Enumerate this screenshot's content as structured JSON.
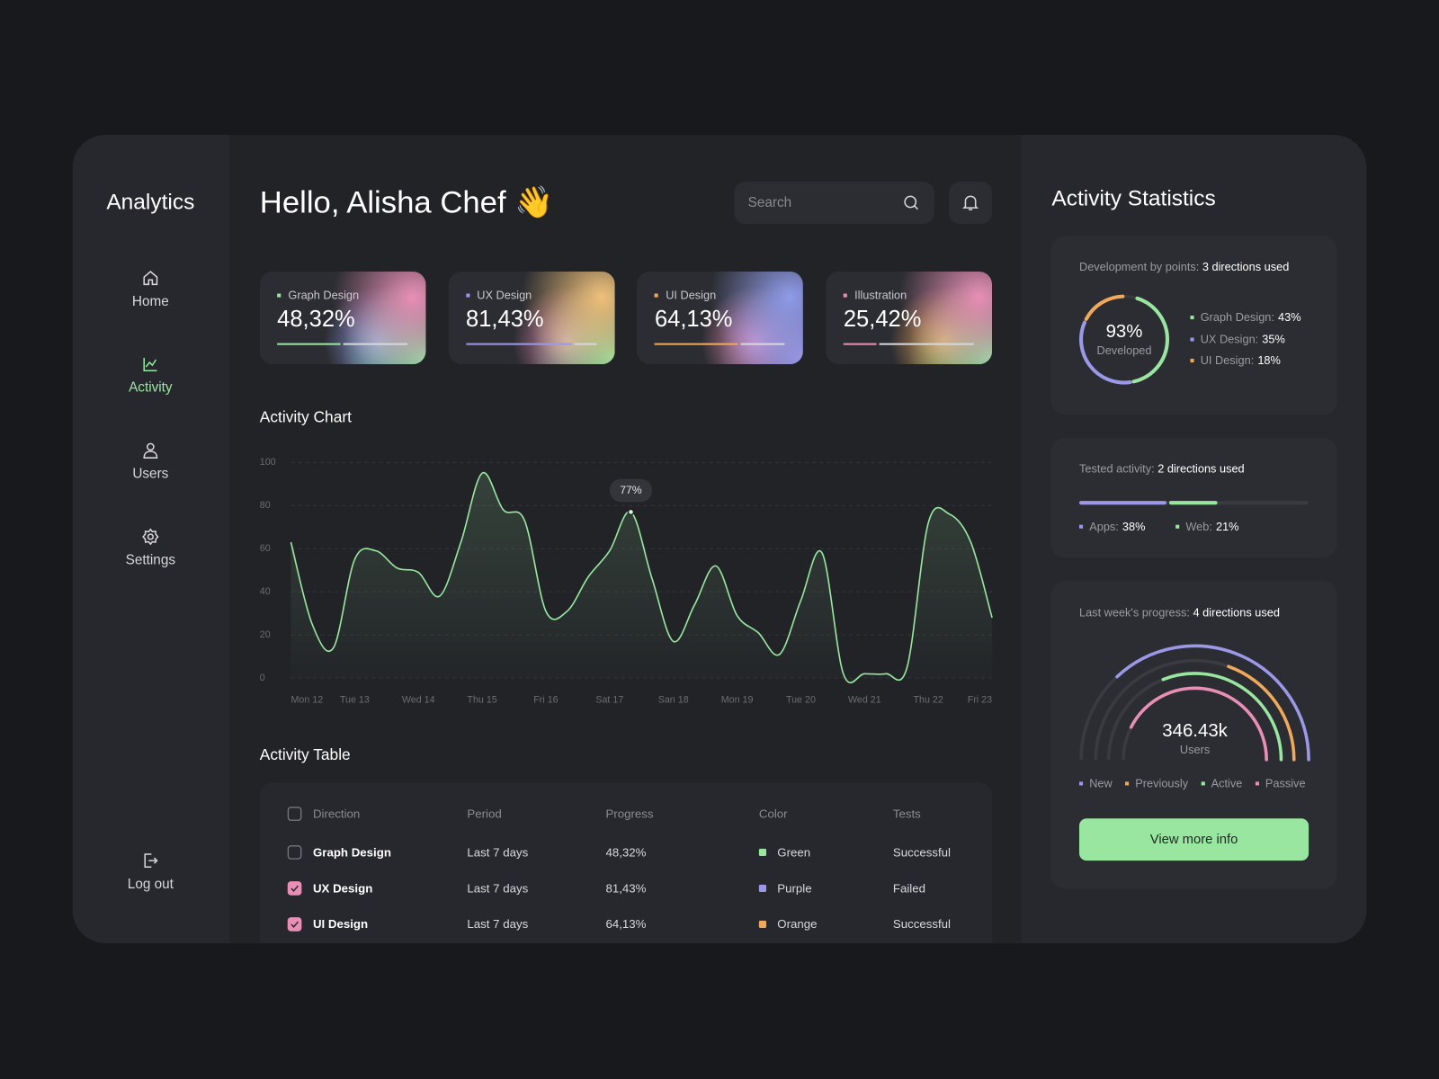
{
  "sidebar": {
    "brand": "Analytics",
    "accent": "#98e6a0",
    "nav": [
      {
        "label": "Home",
        "active": false
      },
      {
        "label": "Activity",
        "active": true
      },
      {
        "label": "Users",
        "active": false
      },
      {
        "label": "Settings",
        "active": false
      }
    ],
    "logout": "Log out"
  },
  "header": {
    "greeting": "Hello, Alisha Chef 👋",
    "search_placeholder": "Search"
  },
  "cards": [
    {
      "label": "Graph Design",
      "value": 48.32,
      "value_label": "48,32%",
      "color": "#98e6a0"
    },
    {
      "label": "UX Design",
      "value": 81.43,
      "value_label": "81,43%",
      "color": "#9b98e8"
    },
    {
      "label": "UI Design",
      "value": 64.13,
      "value_label": "64,13%",
      "color": "#f0a95a"
    },
    {
      "label": "Illustration",
      "value": 25.42,
      "value_label": "25,42%",
      "color": "#e88fb5"
    }
  ],
  "activity_chart": {
    "type": "line",
    "title": "Activity Chart",
    "color": "#98e6a0",
    "grid": true,
    "categories": [
      "Mon 12",
      null,
      null,
      "Tue 13",
      null,
      null,
      "Wed 14",
      null,
      null,
      "Thu 15",
      null,
      null,
      "Fri 16",
      null,
      null,
      "Sat 17",
      null,
      null,
      "San 18",
      null,
      null,
      "Mon 19",
      null,
      null,
      "Tue 20",
      null,
      null,
      "Wed 21",
      null,
      null,
      "Thu 22",
      null,
      null,
      "Fri 23"
    ],
    "values": [
      63,
      25,
      14,
      55,
      59,
      51,
      49,
      38,
      63,
      95,
      78,
      73,
      31,
      31,
      47,
      59,
      77,
      46,
      17,
      34,
      52,
      29,
      21,
      11,
      36,
      58,
      2,
      2,
      2,
      5,
      72,
      76,
      63,
      28
    ],
    "value_labels": [
      null,
      null,
      null,
      null,
      null,
      null,
      null,
      null,
      null,
      null,
      null,
      null,
      null,
      null,
      null,
      null,
      "77%",
      null,
      null,
      null,
      null,
      null,
      null,
      null,
      null,
      null,
      null,
      null,
      null,
      null,
      null,
      null,
      null,
      null
    ],
    "ylim": [
      0,
      100
    ],
    "yticks": [
      0,
      20,
      40,
      60,
      80,
      100
    ]
  },
  "activity_table": {
    "title": "Activity Table",
    "header_checked": false,
    "columns": [
      "Direction",
      "Period",
      "Progress",
      "Color",
      "Tests"
    ],
    "rows": [
      {
        "checked": false,
        "swatch": "#98e6a0",
        "cells": [
          "Graph Design",
          "Last 7 days",
          "48,32%",
          "Green",
          "Successful"
        ]
      },
      {
        "checked": true,
        "swatch": "#9b98e8",
        "cells": [
          "UX Design",
          "Last 7 days",
          "81,43%",
          "Purple",
          "Failed"
        ]
      },
      {
        "checked": true,
        "swatch": "#f0a95a",
        "cells": [
          "UI Design",
          "Last 7 days",
          "64,13%",
          "Orange",
          "Successful"
        ]
      }
    ]
  },
  "statistics": {
    "title": "Activity Statistics",
    "development": {
      "label": "Development by points:",
      "label_value": "3 directions used",
      "center_value": "93%",
      "center_label": "Developed",
      "items": [
        {
          "name": "Graph Design:",
          "value": 43,
          "value_label": "43%",
          "color": "#98e6a0"
        },
        {
          "name": "UX Design:",
          "value": 35,
          "value_label": "35%",
          "color": "#9b98e8"
        },
        {
          "name": "UI Design:",
          "value": 18,
          "value_label": "18%",
          "color": "#f0a95a"
        }
      ]
    },
    "tested": {
      "label": "Tested activity:",
      "label_value": "2 directions used",
      "items": [
        {
          "name": "Apps:",
          "value": 38,
          "value_label": "38%",
          "color": "#9b98e8"
        },
        {
          "name": "Web:",
          "value": 21,
          "value_label": "21%",
          "color": "#98e6a0"
        }
      ]
    },
    "progress": {
      "label": "Last week's progress:",
      "label_value": "4 directions used",
      "center_value": "346.43k",
      "center_label": "Users",
      "items": [
        {
          "name": "New",
          "value": 74,
          "color": "#9b98e8"
        },
        {
          "name": "Previously",
          "value": 39,
          "color": "#f0a95a"
        },
        {
          "name": "Active",
          "value": 62,
          "color": "#98e6a0"
        },
        {
          "name": "Passive",
          "value": 85,
          "color": "#e88fb5"
        }
      ],
      "button": "View more info"
    }
  }
}
